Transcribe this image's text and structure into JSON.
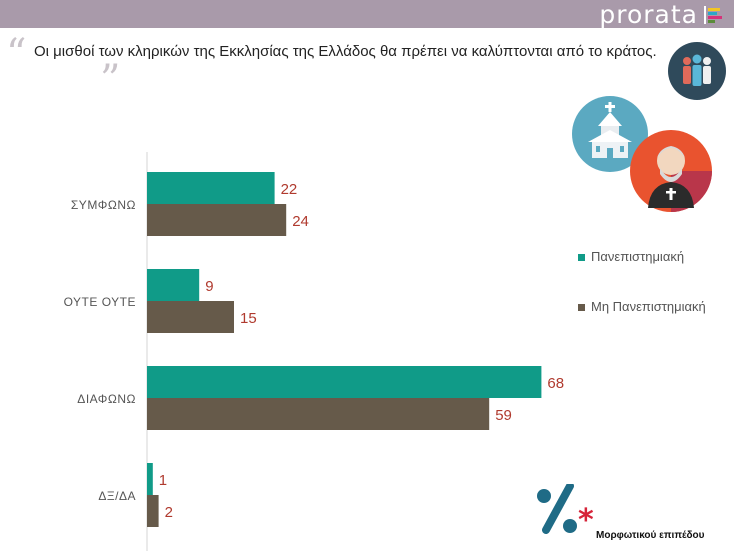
{
  "brand": {
    "name": "prorata",
    "mark": "|"
  },
  "question": {
    "text": "Οι μισθοί των κληρικών της Εκκλησίας της Ελλάδος θα πρέπει να καλύπτονται από το κράτος."
  },
  "icons": {
    "people": "people-group-icon",
    "church": "church-icon",
    "priest": "priest-icon",
    "percent": "percent-icon"
  },
  "colors": {
    "teal": "#109b88",
    "brown": "#665a4a",
    "label_red": "#b03a2e",
    "header": "#a99aaa"
  },
  "footer": {
    "note": "Μορφωτικού επιπέδου"
  },
  "chart_data": {
    "type": "bar",
    "orientation": "horizontal",
    "categories": [
      "ΣΥΜΦΩΝΩ",
      "ΟΥΤΕ ΟΥΤΕ",
      "ΔΙΑΦΩΝΩ",
      "ΔΞ/ΔΑ"
    ],
    "series": [
      {
        "name": "Πανεπιστημιακή",
        "color": "#109b88",
        "values": [
          22,
          9,
          68,
          1
        ]
      },
      {
        "name": "Μη Πανεπιστημιακή",
        "color": "#665a4a",
        "values": [
          24,
          15,
          59,
          2
        ]
      }
    ],
    "xlim": [
      0,
      75
    ],
    "grid": false,
    "legend_position": "right"
  }
}
